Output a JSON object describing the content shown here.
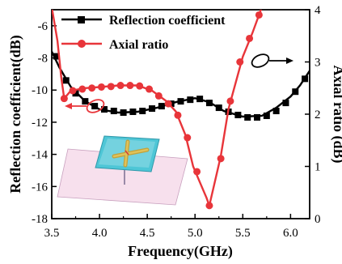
{
  "chart_data": {
    "type": "line",
    "xlabel": "Frequency(GHz)",
    "ylabel_left": "Reflection coefficient(dB)",
    "ylabel_right": "Axial ratio (dB)",
    "xlim": [
      3.5,
      6.2
    ],
    "ylim_left": [
      -18,
      -5
    ],
    "ylim_right": [
      0,
      4
    ],
    "x_ticks": [
      "3.5",
      "4.0",
      "4.5",
      "5.0",
      "5.5",
      "6.0"
    ],
    "y_ticks_left": [
      "-6",
      "-8",
      "-10",
      "-12",
      "-14",
      "-16",
      "-18"
    ],
    "y_ticks_right": [
      "4",
      "3",
      "2",
      "1",
      "0"
    ],
    "legend": [
      "Reflection coefficient",
      "Axial ratio"
    ],
    "colors": {
      "reflection": "#000000",
      "axial": "#e8353a"
    },
    "series": [
      {
        "name": "Reflection coefficient",
        "axis": "left",
        "marker": "square",
        "color": "#000000",
        "line": [
          [
            3.5,
            -7.6
          ],
          [
            3.58,
            -8.6
          ],
          [
            3.7,
            -9.8
          ],
          [
            3.85,
            -10.7
          ],
          [
            4.0,
            -11.2
          ],
          [
            4.2,
            -11.4
          ],
          [
            4.4,
            -11.35
          ],
          [
            4.6,
            -11.1
          ],
          [
            4.8,
            -10.75
          ],
          [
            5.0,
            -10.5
          ],
          [
            5.15,
            -10.75
          ],
          [
            5.3,
            -11.3
          ],
          [
            5.5,
            -11.65
          ],
          [
            5.7,
            -11.6
          ],
          [
            5.85,
            -11.1
          ],
          [
            6.0,
            -10.4
          ],
          [
            6.1,
            -9.7
          ],
          [
            6.2,
            -8.8
          ]
        ],
        "markers": [
          [
            3.55,
            -7.9
          ],
          [
            3.65,
            -9.4
          ],
          [
            3.75,
            -10.2
          ],
          [
            3.85,
            -10.7
          ],
          [
            3.95,
            -11.0
          ],
          [
            4.05,
            -11.2
          ],
          [
            4.15,
            -11.3
          ],
          [
            4.25,
            -11.4
          ],
          [
            4.35,
            -11.35
          ],
          [
            4.45,
            -11.3
          ],
          [
            4.55,
            -11.15
          ],
          [
            4.65,
            -11.0
          ],
          [
            4.75,
            -10.85
          ],
          [
            4.85,
            -10.7
          ],
          [
            4.95,
            -10.6
          ],
          [
            5.05,
            -10.55
          ],
          [
            5.15,
            -10.8
          ],
          [
            5.25,
            -11.1
          ],
          [
            5.35,
            -11.35
          ],
          [
            5.45,
            -11.55
          ],
          [
            5.55,
            -11.7
          ],
          [
            5.65,
            -11.7
          ],
          [
            5.75,
            -11.6
          ],
          [
            5.85,
            -11.3
          ],
          [
            5.95,
            -10.8
          ],
          [
            6.05,
            -10.1
          ],
          [
            6.15,
            -9.3
          ]
        ]
      },
      {
        "name": "Axial ratio",
        "axis": "right",
        "marker": "circle",
        "color": "#e8353a",
        "line": [
          [
            3.5,
            4.05
          ],
          [
            3.56,
            3.4
          ],
          [
            3.6,
            2.7
          ],
          [
            3.63,
            2.3
          ],
          [
            3.7,
            2.45
          ],
          [
            3.85,
            2.5
          ],
          [
            4.0,
            2.52
          ],
          [
            4.2,
            2.55
          ],
          [
            4.4,
            2.55
          ],
          [
            4.55,
            2.45
          ],
          [
            4.7,
            2.25
          ],
          [
            4.8,
            2.05
          ],
          [
            4.9,
            1.6
          ],
          [
            4.98,
            1.0
          ],
          [
            5.05,
            0.7
          ],
          [
            5.12,
            0.4
          ],
          [
            5.15,
            0.25
          ],
          [
            5.2,
            0.65
          ],
          [
            5.27,
            1.2
          ],
          [
            5.35,
            2.1
          ],
          [
            5.5,
            3.1
          ],
          [
            5.6,
            3.55
          ],
          [
            5.7,
            4.05
          ]
        ],
        "markers": [
          [
            3.63,
            2.3
          ],
          [
            3.72,
            2.45
          ],
          [
            3.82,
            2.48
          ],
          [
            3.92,
            2.5
          ],
          [
            4.02,
            2.52
          ],
          [
            4.12,
            2.53
          ],
          [
            4.22,
            2.55
          ],
          [
            4.32,
            2.55
          ],
          [
            4.42,
            2.54
          ],
          [
            4.52,
            2.48
          ],
          [
            4.62,
            2.35
          ],
          [
            4.72,
            2.2
          ],
          [
            4.82,
            1.98
          ],
          [
            4.92,
            1.55
          ],
          [
            5.02,
            0.9
          ],
          [
            5.15,
            0.25
          ],
          [
            5.27,
            1.15
          ],
          [
            5.37,
            2.25
          ],
          [
            5.47,
            3.0
          ],
          [
            5.57,
            3.45
          ],
          [
            5.67,
            3.9
          ]
        ]
      }
    ]
  }
}
